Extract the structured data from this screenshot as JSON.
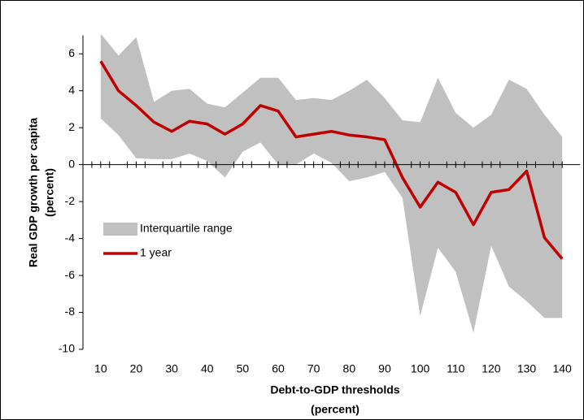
{
  "chart_data": {
    "type": "line",
    "x_label": "Debt-to-GDP thresholds",
    "x_label_unit": "(percent)",
    "y_label": "Real GDP growth per capita",
    "y_label_unit": "(percent)",
    "x": [
      10,
      15,
      20,
      25,
      30,
      35,
      40,
      45,
      50,
      55,
      60,
      65,
      70,
      75,
      80,
      85,
      90,
      95,
      100,
      105,
      110,
      115,
      120,
      125,
      130,
      135,
      140
    ],
    "xlim": [
      5,
      145
    ],
    "xticks": [
      10,
      20,
      30,
      40,
      50,
      60,
      70,
      80,
      90,
      100,
      110,
      120,
      130,
      140
    ],
    "ylim": [
      -10,
      7
    ],
    "yticks": [
      -10,
      -8,
      -6,
      -4,
      -2,
      0,
      2,
      4,
      6
    ],
    "legend": "left",
    "series": [
      {
        "name": "Interquartile range",
        "color": "#c0c0c0",
        "upper": [
          7.1,
          5.9,
          6.9,
          3.4,
          4.0,
          4.1,
          3.3,
          3.1,
          3.9,
          4.7,
          4.7,
          3.5,
          3.6,
          3.5,
          4.0,
          4.6,
          3.6,
          2.4,
          2.3,
          4.7,
          2.8,
          2.0,
          2.7,
          4.6,
          4.1,
          2.7,
          1.5
        ],
        "lower": [
          2.5,
          1.6,
          0.35,
          0.3,
          0.3,
          0.6,
          0.2,
          -0.7,
          0.7,
          1.2,
          0.0,
          0.0,
          0.6,
          0.1,
          -0.9,
          -0.7,
          -0.4,
          -1.8,
          -8.2,
          -4.5,
          -5.8,
          -9.1,
          -4.4,
          -6.6,
          -7.4,
          -8.3,
          -8.3
        ]
      },
      {
        "name": "1 year",
        "color": "#c00000",
        "values": [
          5.6,
          4.0,
          3.2,
          2.3,
          1.8,
          2.35,
          2.2,
          1.65,
          2.2,
          3.2,
          2.9,
          1.5,
          1.65,
          1.8,
          1.6,
          1.5,
          1.35,
          -0.7,
          -2.3,
          -0.95,
          -1.5,
          -3.25,
          -1.5,
          -1.35,
          -0.35,
          -3.95,
          -5.1
        ]
      }
    ]
  }
}
